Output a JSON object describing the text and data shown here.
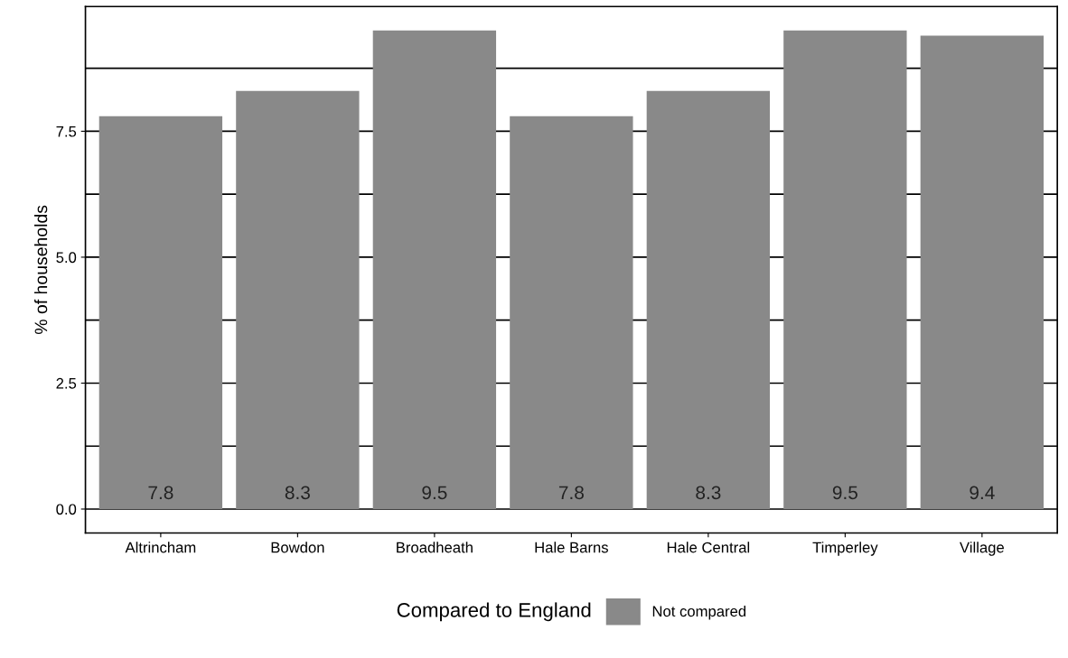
{
  "chart_data": {
    "type": "bar",
    "ylabel": "% of households",
    "legend_title": "Compared to England",
    "categories": [
      "Altrincham",
      "Bowdon",
      "Broadheath",
      "Hale Barns",
      "Hale Central",
      "Timperley",
      "Village"
    ],
    "series": [
      {
        "name": "Not compared",
        "color": "#898989",
        "values": [
          7.8,
          8.3,
          9.5,
          7.8,
          8.3,
          9.5,
          9.4
        ]
      }
    ],
    "ylim": [
      -0.475,
      9.975
    ],
    "yticks": [
      {
        "value": 0,
        "label": "0.0"
      },
      {
        "value": 1.25,
        "label": null
      },
      2.5,
      {
        "value": 3.75,
        "label": null
      },
      {
        "value": 5,
        "label": "5.0"
      },
      {
        "value": 6.25,
        "label": null
      },
      7.5,
      {
        "value": 8.75,
        "label": null
      }
    ],
    "grid": "y",
    "legend": "bottom",
    "data_labels": true
  }
}
